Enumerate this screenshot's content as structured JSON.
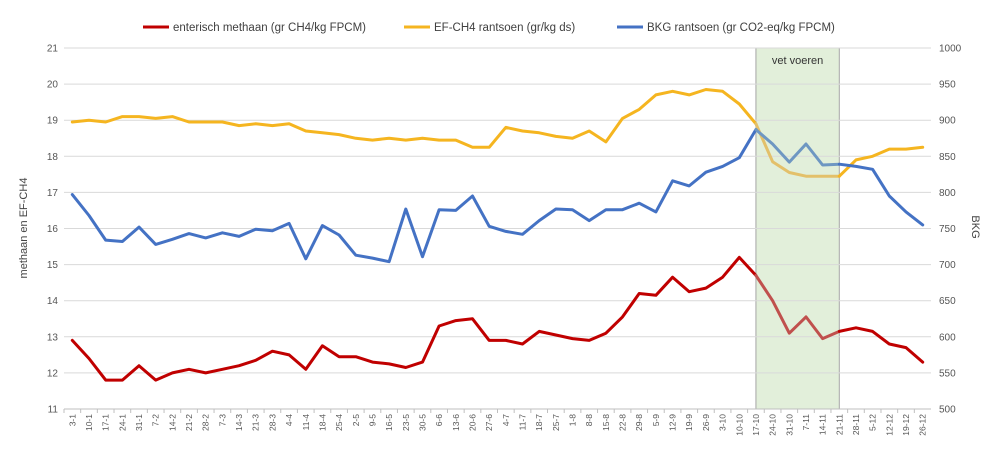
{
  "chart_data": {
    "type": "line",
    "title": "",
    "ylabel_left": "methaan en EF-CH4",
    "ylabel_right": "BKG",
    "ylim_left": [
      11,
      21
    ],
    "yticks_left": [
      "11",
      "12",
      "13",
      "14",
      "15",
      "16",
      "17",
      "18",
      "19",
      "20",
      "21"
    ],
    "ylim_right": [
      500,
      1000
    ],
    "yticks_right": [
      "500",
      "550",
      "600",
      "650",
      "700",
      "750",
      "800",
      "850",
      "900",
      "950",
      "1000"
    ],
    "grid": "horizontal",
    "legend": "top",
    "x": [
      "3-1",
      "10-1",
      "17-1",
      "24-1",
      "31-1",
      "7-2",
      "14-2",
      "21-2",
      "28-2",
      "7-3",
      "14-3",
      "21-3",
      "28-3",
      "4-4",
      "11-4",
      "18-4",
      "25-4",
      "2-5",
      "9-5",
      "16-5",
      "23-5",
      "30-5",
      "6-6",
      "13-6",
      "20-6",
      "27-6",
      "4-7",
      "11-7",
      "18-7",
      "25-7",
      "1-8",
      "8-8",
      "15-8",
      "22-8",
      "29-8",
      "5-9",
      "12-9",
      "19-9",
      "26-9",
      "3-10",
      "10-10",
      "17-10",
      "24-10",
      "31-10",
      "7-11",
      "14-11",
      "21-11",
      "28-11",
      "5-12",
      "12-12",
      "19-12",
      "26-12"
    ],
    "series": [
      {
        "name": "enterisch methaan (gr CH4/kg FPCM)",
        "axis": "left",
        "color": "#C00000",
        "highlight_color": "#C0504D",
        "values": [
          12.9,
          12.4,
          11.8,
          11.8,
          12.2,
          11.8,
          12.0,
          12.1,
          12.0,
          12.1,
          12.2,
          12.35,
          12.6,
          12.5,
          12.1,
          12.75,
          12.45,
          12.45,
          12.3,
          12.25,
          12.15,
          12.3,
          13.3,
          13.45,
          13.5,
          12.9,
          12.9,
          12.8,
          13.15,
          13.05,
          12.95,
          12.9,
          13.1,
          13.55,
          14.2,
          14.15,
          14.65,
          14.25,
          14.35,
          14.65,
          15.2,
          14.7,
          14.0,
          13.1,
          13.55,
          12.95,
          13.15,
          13.25,
          13.15,
          12.8,
          12.7,
          12.3
        ]
      },
      {
        "name": "EF-CH4 rantsoen (gr/kg ds)",
        "axis": "left",
        "color": "#F5B520",
        "highlight_color": "#E3C06A",
        "values": [
          18.95,
          19.0,
          18.95,
          19.1,
          19.1,
          19.05,
          19.1,
          18.95,
          18.95,
          18.95,
          18.85,
          18.9,
          18.85,
          18.9,
          18.7,
          18.65,
          18.6,
          18.5,
          18.45,
          18.5,
          18.45,
          18.5,
          18.45,
          18.45,
          18.25,
          18.25,
          18.8,
          18.7,
          18.65,
          18.55,
          18.5,
          18.7,
          18.4,
          19.05,
          19.3,
          19.7,
          19.8,
          19.7,
          19.85,
          19.8,
          19.45,
          18.9,
          17.85,
          17.55,
          17.45,
          17.45,
          17.45,
          17.9,
          18.0,
          18.2,
          18.2,
          18.25
        ]
      },
      {
        "name": "BKG rantsoen (gr CO2-eq/kg FPCM)",
        "axis": "right",
        "color": "#4472C4",
        "highlight_color": "#6E97C2",
        "values": [
          797,
          768,
          734,
          732,
          752,
          728,
          735,
          743,
          737,
          744,
          739,
          749,
          747,
          757,
          708,
          754,
          741,
          713,
          709,
          704,
          777,
          711,
          776,
          775,
          795,
          753,
          746,
          742,
          761,
          777,
          776,
          761,
          776,
          776,
          785,
          773,
          816,
          809,
          828,
          836,
          848,
          887,
          867,
          842,
          867,
          838,
          839,
          836,
          832,
          795,
          773,
          755
        ]
      }
    ],
    "annotation": {
      "label": "vet voeren",
      "x_start": "17-10",
      "x_end": "21-11"
    }
  }
}
